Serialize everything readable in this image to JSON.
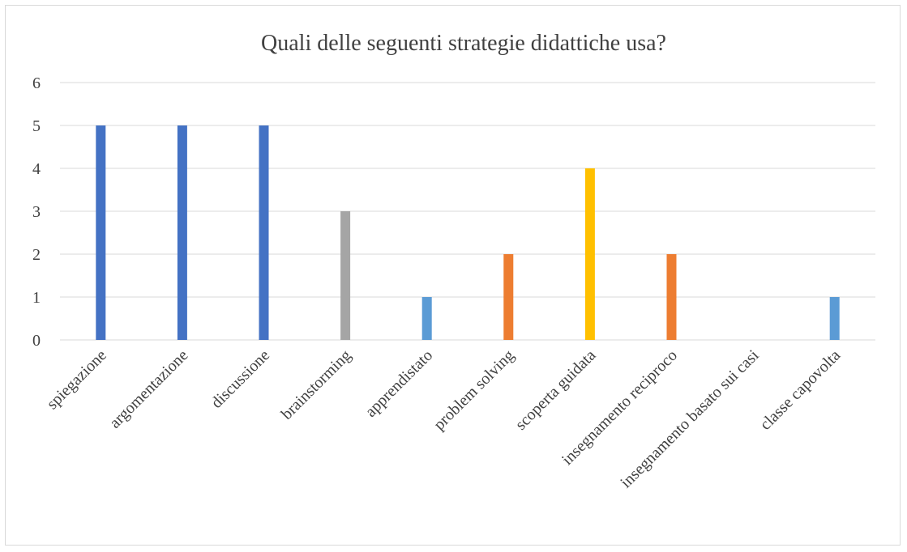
{
  "chart_data": {
    "type": "bar",
    "title": "Quali delle seguenti strategie didattiche usa?",
    "categories": [
      "spiegazione",
      "argomentazione",
      "discussione",
      "brainstorming",
      "apprendistato",
      "problem solving",
      "scoperta guidata",
      "insegnamento reciproco",
      "insegnamento basato sui casi",
      "classe capovolta"
    ],
    "values": [
      5,
      5,
      5,
      3,
      1,
      2,
      4,
      2,
      0,
      1
    ],
    "colors": [
      "#4472C4",
      "#4472C4",
      "#4472C4",
      "#A5A5A5",
      "#5B9BD5",
      "#ED7D31",
      "#FFC000",
      "#ED7D31",
      "#4472C4",
      "#5B9BD5"
    ],
    "xlabel": "",
    "ylabel": "",
    "ylim": [
      0,
      6
    ],
    "yticks": [
      "0",
      "1",
      "2",
      "3",
      "4",
      "5",
      "6"
    ],
    "grid": true,
    "legend": "none"
  }
}
